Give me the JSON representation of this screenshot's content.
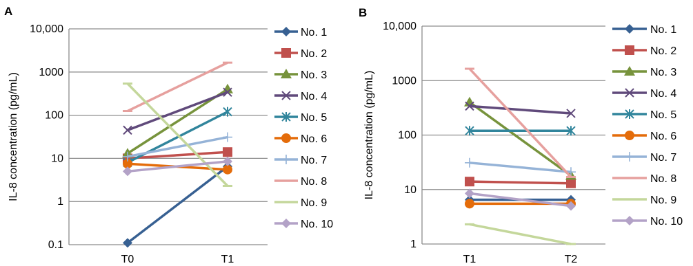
{
  "chart_data": [
    {
      "panel_label": "A",
      "type": "line",
      "yscale": "log",
      "ylim": [
        0.1,
        10000
      ],
      "ylabel": "IL-8 concentration (pg/mL)",
      "y_ticks": [
        "0.1",
        "1",
        "10",
        "100",
        "1000",
        "10,000"
      ],
      "x": [
        "T0",
        "T1"
      ],
      "grid": true,
      "legend": "right",
      "series": [
        {
          "name": "No. 1",
          "values": [
            0.11,
            6.5
          ],
          "color": "#376092",
          "marker": "diamond"
        },
        {
          "name": "No. 2",
          "values": [
            10,
            14
          ],
          "color": "#c0504d",
          "marker": "square"
        },
        {
          "name": "No. 3",
          "values": [
            13,
            400
          ],
          "color": "#77933c",
          "marker": "triangle"
        },
        {
          "name": "No. 4",
          "values": [
            45,
            340
          ],
          "color": "#604a7b",
          "marker": "x"
        },
        {
          "name": "No. 5",
          "values": [
            8,
            120
          ],
          "color": "#31859c",
          "marker": "asterisk"
        },
        {
          "name": "No. 6",
          "values": [
            7.5,
            5.5
          ],
          "color": "#e46c0a",
          "marker": "circle"
        },
        {
          "name": "No. 7",
          "values": [
            11,
            31
          ],
          "color": "#95b3d7",
          "marker": "plus"
        },
        {
          "name": "No. 8",
          "values": [
            125,
            1650
          ],
          "color": "#e6a09e",
          "marker": "dash"
        },
        {
          "name": "No. 9",
          "values": [
            540,
            2.3
          ],
          "color": "#c4d79b",
          "marker": "dash"
        },
        {
          "name": "No. 10",
          "values": [
            5,
            8.5
          ],
          "color": "#b3a2c7",
          "marker": "diamond"
        }
      ]
    },
    {
      "panel_label": "B",
      "type": "line",
      "yscale": "log",
      "ylim": [
        1,
        10000
      ],
      "ylabel": "IL-8 concentration (pg/mL)",
      "y_ticks": [
        "1",
        "10",
        "100",
        "1000",
        "10,000"
      ],
      "x": [
        "T1",
        "T2"
      ],
      "grid": true,
      "legend": "right",
      "series": [
        {
          "name": "No. 1",
          "values": [
            6.5,
            6.5
          ],
          "color": "#376092",
          "marker": "diamond"
        },
        {
          "name": "No. 2",
          "values": [
            14,
            13
          ],
          "color": "#c0504d",
          "marker": "square"
        },
        {
          "name": "No. 3",
          "values": [
            400,
            18
          ],
          "color": "#77933c",
          "marker": "triangle"
        },
        {
          "name": "No. 4",
          "values": [
            340,
            250
          ],
          "color": "#604a7b",
          "marker": "x"
        },
        {
          "name": "No. 5",
          "values": [
            120,
            120
          ],
          "color": "#31859c",
          "marker": "asterisk"
        },
        {
          "name": "No. 6",
          "values": [
            5.5,
            5.5
          ],
          "color": "#e46c0a",
          "marker": "circle"
        },
        {
          "name": "No. 7",
          "values": [
            31,
            21
          ],
          "color": "#95b3d7",
          "marker": "plus"
        },
        {
          "name": "No. 8",
          "values": [
            1650,
            17
          ],
          "color": "#e6a09e",
          "marker": "dash"
        },
        {
          "name": "No. 9",
          "values": [
            2.3,
            1
          ],
          "color": "#c4d79b",
          "marker": "dash"
        },
        {
          "name": "No. 10",
          "values": [
            8.5,
            5
          ],
          "color": "#b3a2c7",
          "marker": "diamond"
        }
      ]
    }
  ]
}
